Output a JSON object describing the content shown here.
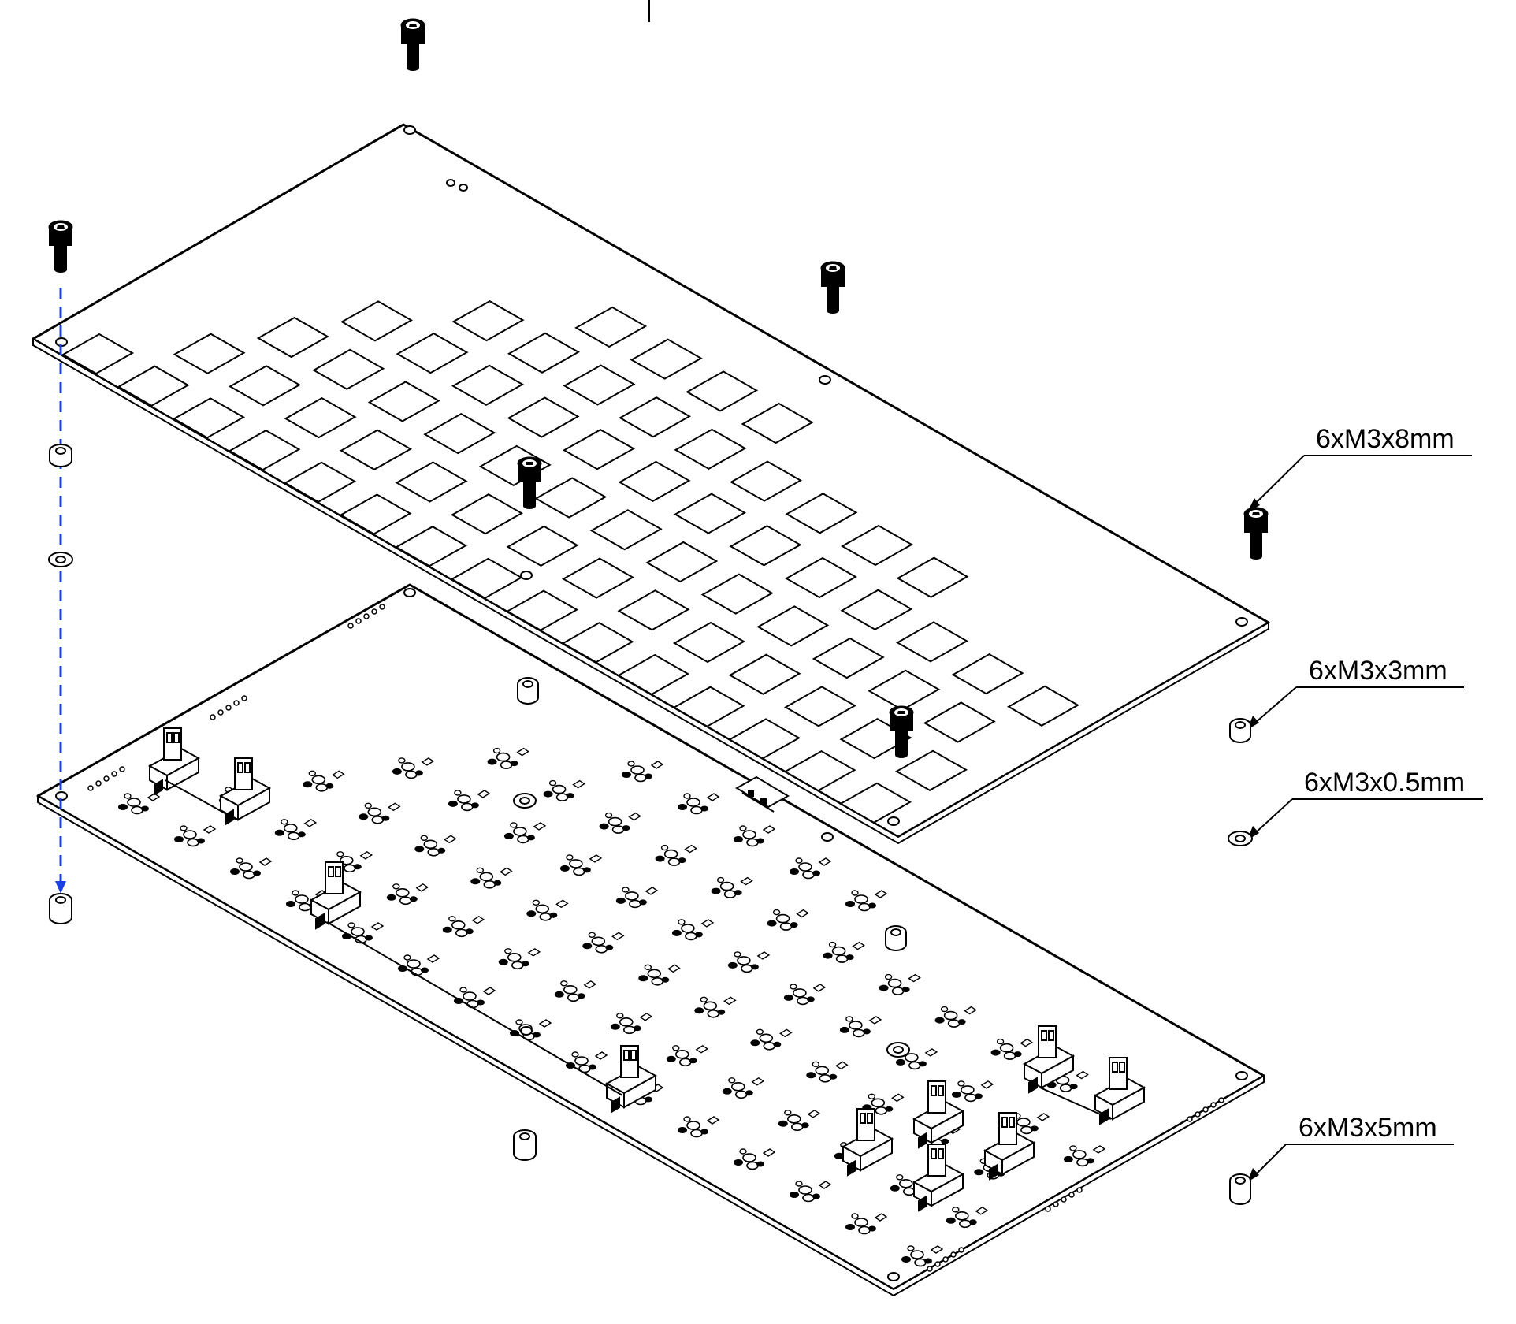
{
  "diagram": {
    "kind": "exploded-assembly",
    "parts": [
      {
        "id": "plate",
        "description_visible": false
      },
      {
        "id": "pcb",
        "description_visible": false
      }
    ],
    "callouts": [
      {
        "id": "screw",
        "label": "6xM3x8mm"
      },
      {
        "id": "standoff-short",
        "label": "6xM3x3mm"
      },
      {
        "id": "washer",
        "label": "6xM3x0.5mm"
      },
      {
        "id": "standoff-long",
        "label": "6xM3x5mm"
      }
    ],
    "colors": {
      "line": "#000000",
      "assembly_path": "#1a3fe0",
      "fastener_fill": "#000000"
    }
  }
}
